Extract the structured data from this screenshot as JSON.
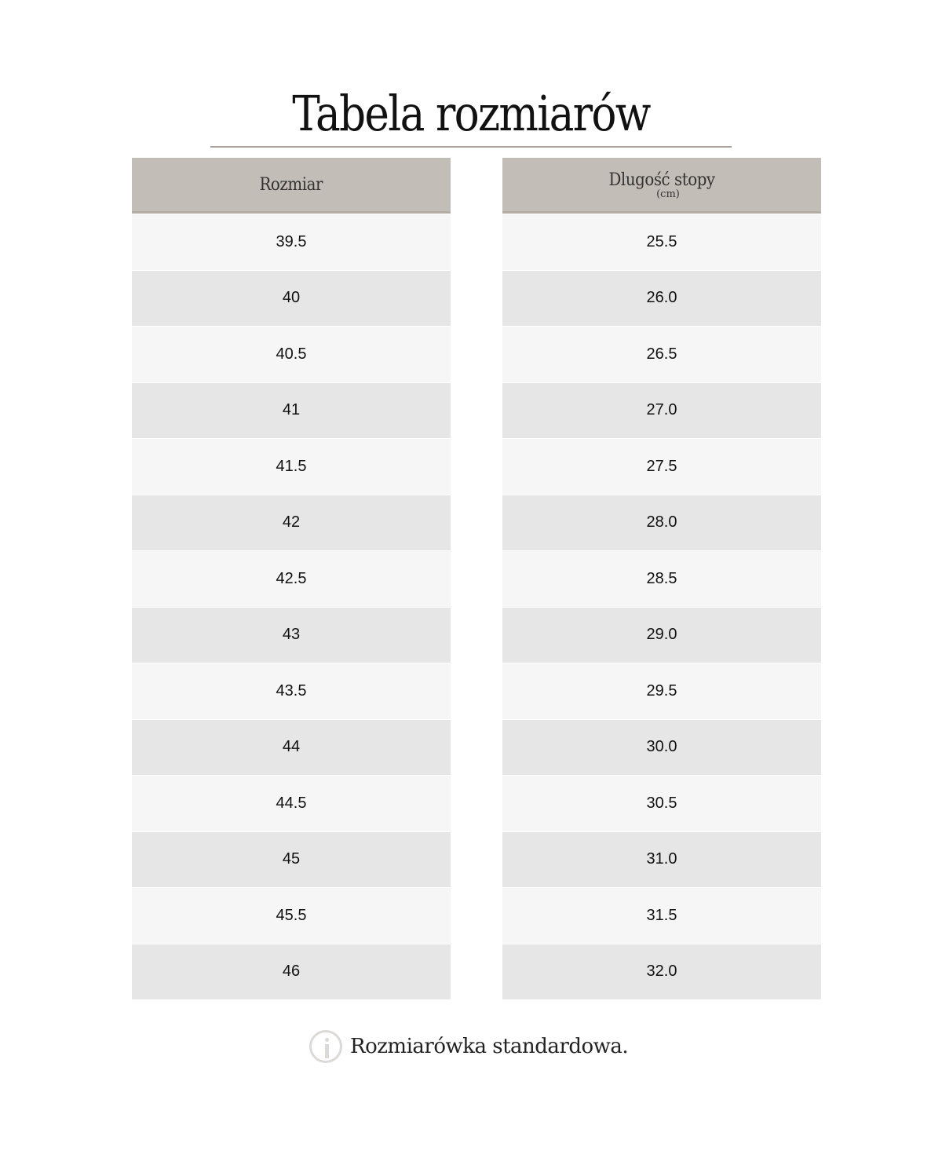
{
  "title": "Tabela rozmiarów",
  "table": {
    "size_header": "Rozmiar",
    "length_header": "Dlugość stopy",
    "length_unit": "(cm)",
    "sizes": [
      "39.5",
      "40",
      "40.5",
      "41",
      "41.5",
      "42",
      "42.5",
      "43",
      "43.5",
      "44",
      "44.5",
      "45",
      "45.5",
      "46"
    ],
    "lengths": [
      "25.5",
      "26.0",
      "26.5",
      "27.0",
      "27.5",
      "28.0",
      "28.5",
      "29.0",
      "29.5",
      "30.0",
      "30.5",
      "31.0",
      "31.5",
      "32.0"
    ]
  },
  "note": {
    "icon": "info-icon",
    "text": "Rozmiarówka standardowa."
  },
  "colors": {
    "header_bg": "#c2bdb6",
    "row_light": "#f6f6f6",
    "row_dark": "#e6e6e6"
  }
}
